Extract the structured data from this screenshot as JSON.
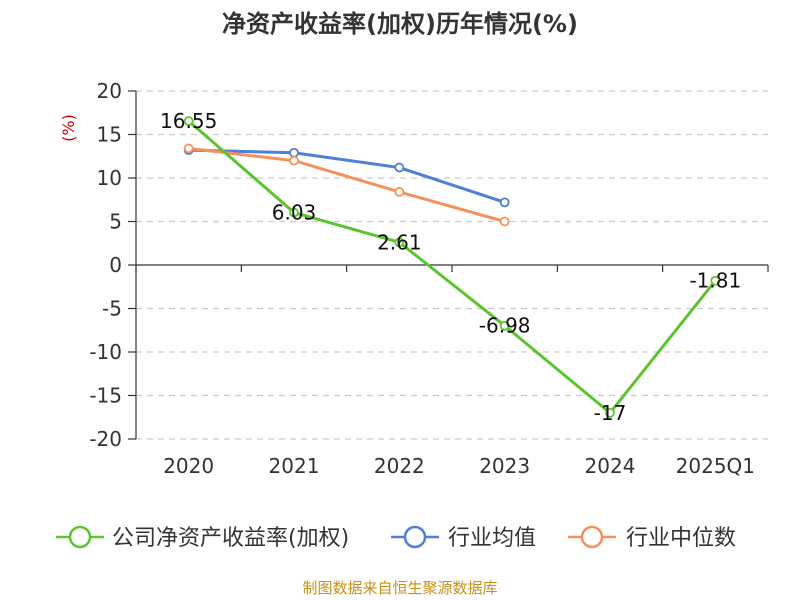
{
  "chart_data": {
    "type": "line",
    "title": "净资产收益率(加权)历年情况(%)",
    "ylabel": "(%)",
    "categories": [
      "2020",
      "2021",
      "2022",
      "2023",
      "2024",
      "2025Q1"
    ],
    "ylim": [
      -20,
      20
    ],
    "yticks": [
      "20",
      "15",
      "10",
      "5",
      "0",
      "-5",
      "-10",
      "-15",
      "-20"
    ],
    "grid": true,
    "legend_position": "bottom",
    "series": [
      {
        "name": "公司净资产收益率(加权)",
        "color": "#5cc42e",
        "values": [
          16.55,
          6.03,
          2.61,
          -6.98,
          -17,
          -1.81
        ],
        "labels": [
          "16.55",
          "6.03",
          "2.61",
          "-6.98",
          "-17",
          "-1.81"
        ]
      },
      {
        "name": "行业均值",
        "color": "#4f7fd8",
        "values": [
          13.2,
          12.9,
          11.2,
          7.2,
          null,
          null
        ]
      },
      {
        "name": "行业中位数",
        "color": "#f5925c",
        "values": [
          13.4,
          12.0,
          8.4,
          5.0,
          null,
          null
        ]
      }
    ]
  },
  "source": "制图数据来自恒生聚源数据库"
}
